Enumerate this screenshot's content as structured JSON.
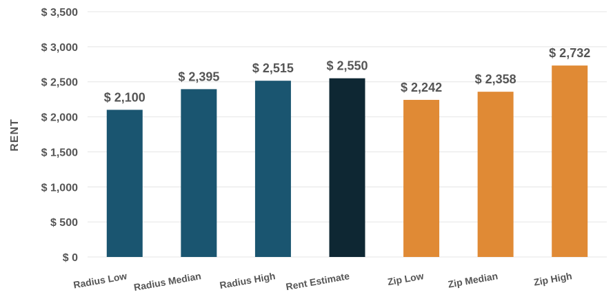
{
  "chart_data": {
    "type": "bar",
    "title": "",
    "xlabel": "",
    "ylabel": "RENT",
    "ylim": [
      0,
      3500
    ],
    "yticks": [
      0,
      500,
      1000,
      1500,
      2000,
      2500,
      3000,
      3500
    ],
    "ytick_labels": [
      "$ 0",
      "$ 500",
      "$ 1,000",
      "$ 1,500",
      "$ 2,000",
      "$ 2,500",
      "$ 3,000",
      "$ 3,500"
    ],
    "grid": true,
    "categories": [
      "Radius Low",
      "Radius Median",
      "Radius High",
      "Rent Estimate",
      "Zip Low",
      "Zip Median",
      "Zip High"
    ],
    "values": [
      2100,
      2395,
      2515,
      2550,
      2242,
      2358,
      2732
    ],
    "value_labels": [
      "$ 2,100",
      "$ 2,395",
      "$ 2,515",
      "$ 2,550",
      "$ 2,242",
      "$ 2,358",
      "$ 2,732"
    ],
    "colors": [
      "#1a5570",
      "#1a5570",
      "#1a5570",
      "#0e2733",
      "#e08a35",
      "#e08a35",
      "#e08a35"
    ]
  }
}
